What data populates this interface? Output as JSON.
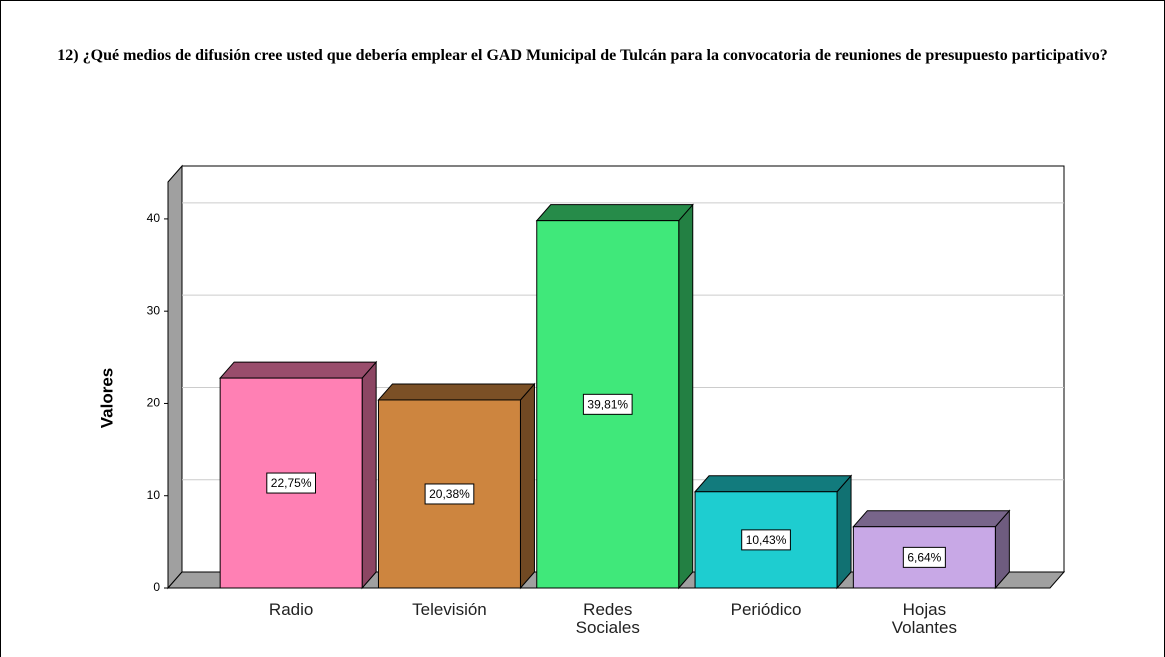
{
  "chart_data": {
    "type": "bar3d",
    "title": "12) ¿Qué medios de difusión cree usted que debería emplear el GAD Municipal de Tulcán para la convocatoria de reuniones de presupuesto participativo?",
    "y_label": "Valores",
    "categories": [
      "Radio",
      "Televisión",
      "Redes Sociales",
      "Periódico",
      "Hojas Volantes"
    ],
    "values": [
      22.75,
      20.38,
      39.81,
      10.43,
      6.64
    ],
    "value_labels": [
      "22,75%",
      "20,38%",
      "39,81%",
      "10,43%",
      "6,64%"
    ],
    "colors": [
      "#ff80b4",
      "#cd853f",
      "#40e87a",
      "#1ecdd0",
      "#c8a8e6"
    ],
    "ylim": [
      0,
      44
    ],
    "yticks": [
      0,
      10,
      20,
      30,
      40
    ],
    "grid": true
  }
}
